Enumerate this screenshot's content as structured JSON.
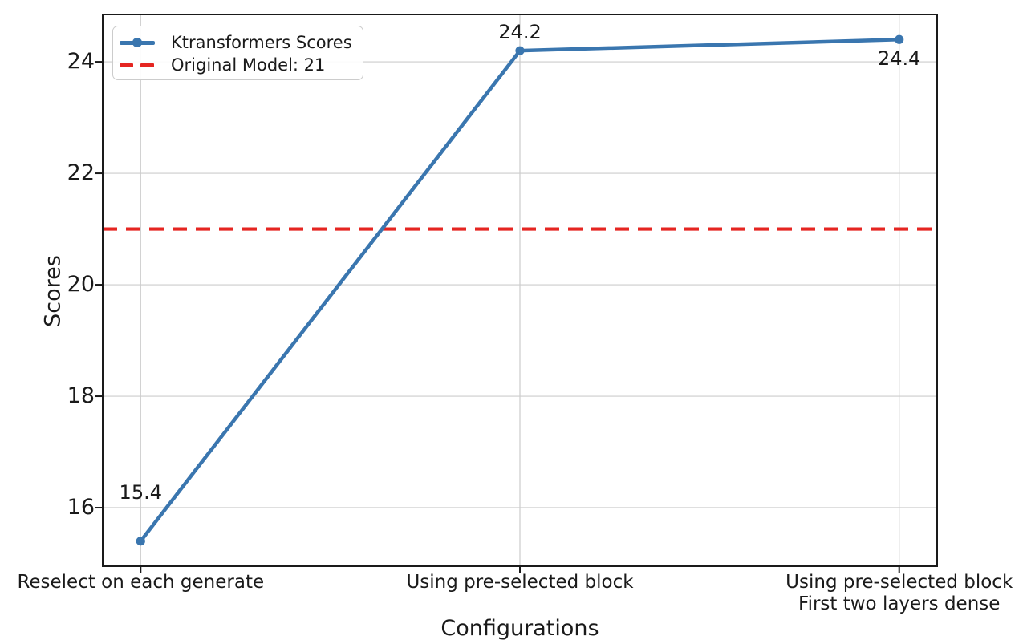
{
  "chart_data": {
    "type": "line",
    "title": "",
    "xlabel": "Configurations",
    "ylabel": "Scores",
    "categories": [
      [
        "Reselect on each generate"
      ],
      [
        "Using pre-selected block"
      ],
      [
        "Using pre-selected block",
        "First two layers dense"
      ]
    ],
    "series": [
      {
        "name": "Ktransformers Scores",
        "values": [
          15.4,
          24.2,
          24.4
        ],
        "color": "#3a76af",
        "marker": "circle",
        "linewidth": 4.5
      }
    ],
    "reference_line": {
      "label": "Original Model: 21",
      "value": 21,
      "color": "#e52521",
      "style": "dashed"
    },
    "annotations": [
      {
        "text": "15.4",
        "point_index": 0
      },
      {
        "text": "24.2",
        "point_index": 1
      },
      {
        "text": "24.4",
        "point_index": 2
      }
    ],
    "yticks": [
      16,
      18,
      20,
      22,
      24
    ],
    "ylim": [
      14.95,
      24.85
    ],
    "xlim": [
      -0.1,
      2.1
    ],
    "grid": true,
    "legend_position": "upper left",
    "colors": {
      "grid": "#cccccc",
      "axis": "#1a1a1a",
      "text": "#1a1a1a",
      "background": "#ffffff"
    }
  },
  "legend": {
    "items": [
      {
        "label": "Ktransformers Scores",
        "swatch": "line-with-marker",
        "color": "#3a76af"
      },
      {
        "label": "Original Model: 21",
        "swatch": "dashed-line",
        "color": "#e52521"
      }
    ]
  }
}
